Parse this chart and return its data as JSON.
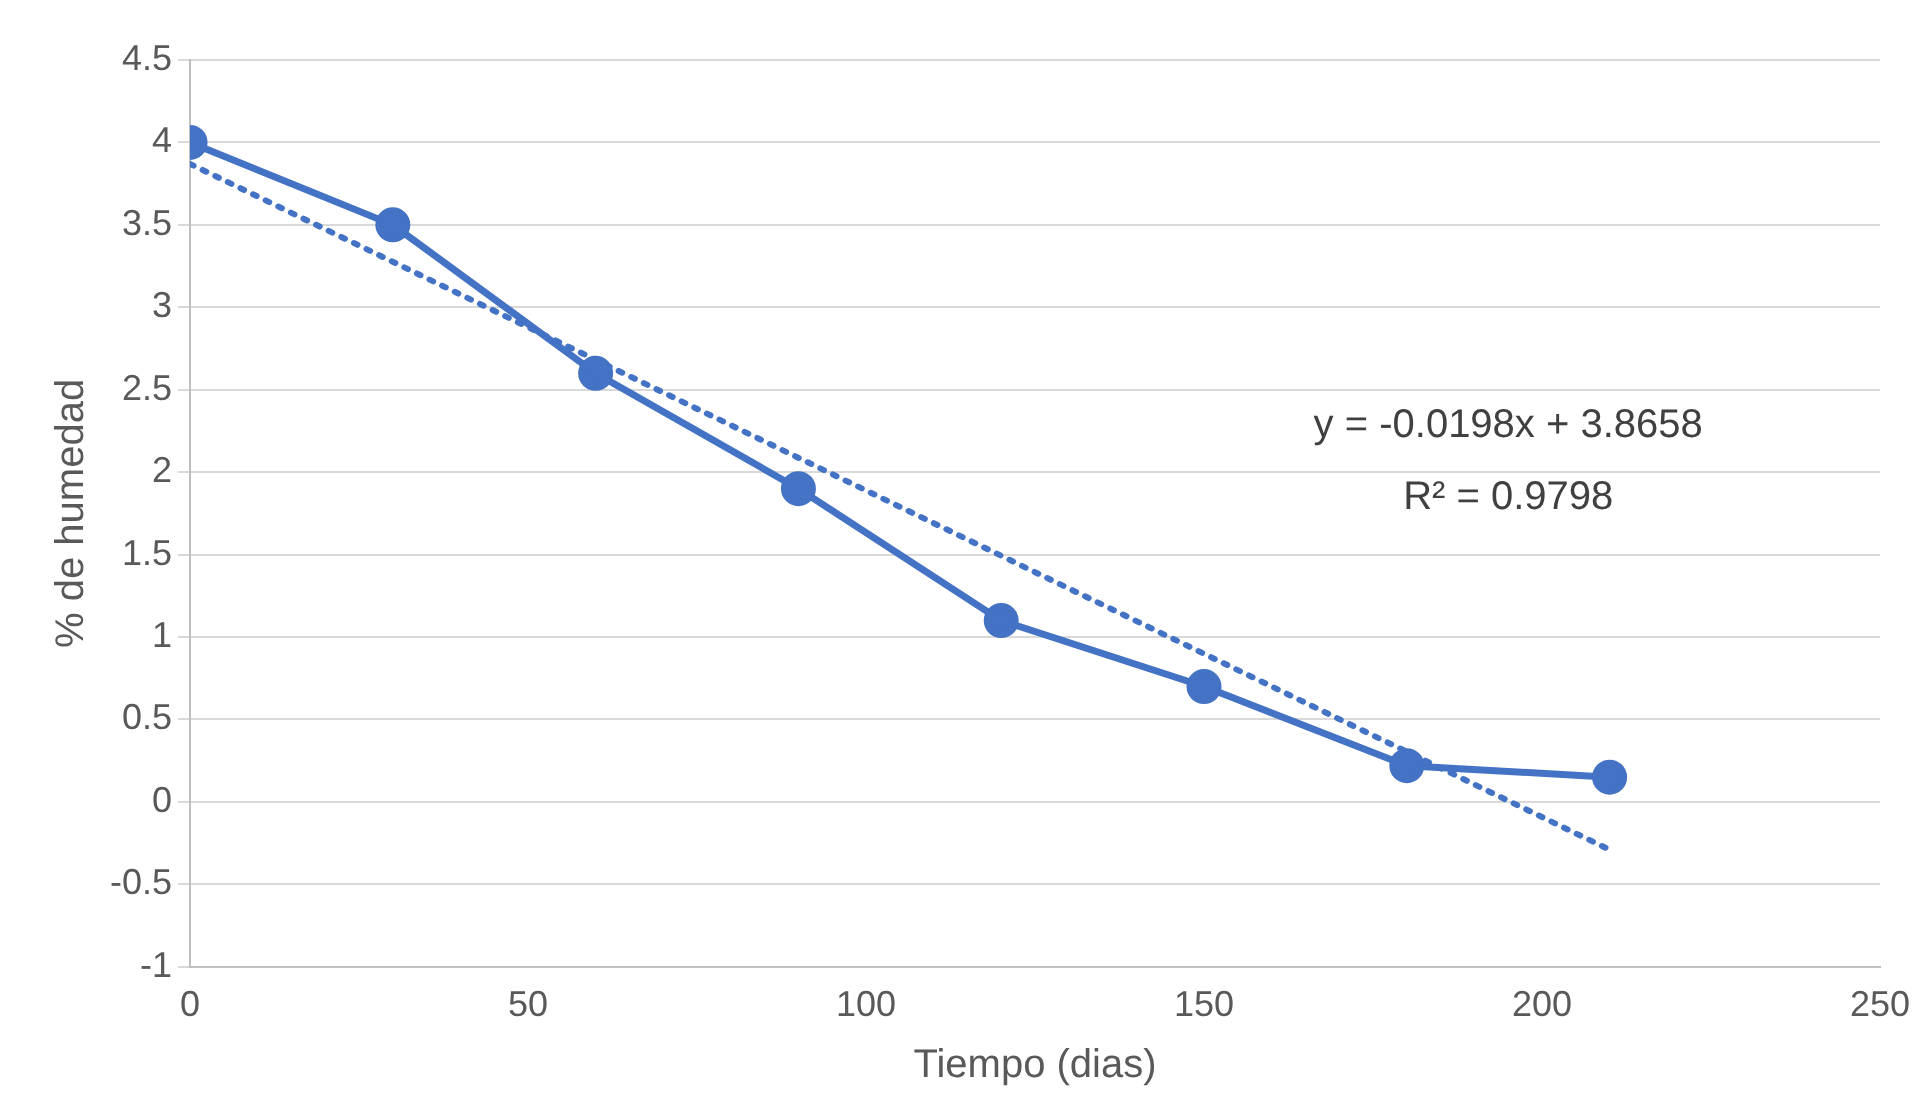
{
  "chart_data": {
    "type": "line",
    "xlabel": "Tiempo (dias)",
    "ylabel": "% de humedad",
    "xlim": [
      0,
      250
    ],
    "xticks": [
      0,
      50,
      100,
      150,
      200,
      250
    ],
    "ylim": [
      -1,
      4.5
    ],
    "yticks": [
      -1,
      -0.5,
      0,
      0.5,
      1,
      1.5,
      2,
      2.5,
      3,
      3.5,
      4,
      4.5
    ],
    "grid": "y",
    "legend": false,
    "marker": "circle",
    "series": [
      {
        "color": "#4472c4",
        "x": [
          0,
          30,
          60,
          90,
          120,
          150,
          180,
          210
        ],
        "values": [
          4,
          3.5,
          2.6,
          1.9,
          1.1,
          0.7,
          0.22,
          0.15
        ],
        "line_style": "solid"
      },
      {
        "color": "#4472c4",
        "x": [
          0,
          210
        ],
        "values": [
          3.87,
          -0.29
        ],
        "marker": "none",
        "line_style": "dotted"
      }
    ],
    "annotations": [
      "y = -0.0198x + 3.8658",
      "R² = 0.9798"
    ]
  }
}
